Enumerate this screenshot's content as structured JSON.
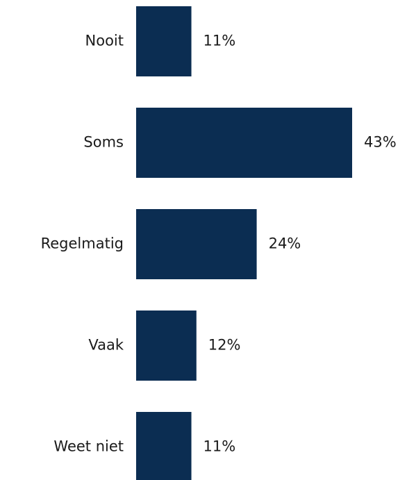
{
  "chart_data": {
    "type": "bar",
    "orientation": "horizontal",
    "color": "#0b2d52",
    "categories": [
      "Nooit",
      "Soms",
      "Regelmatig",
      "Vaak",
      "Weet niet"
    ],
    "values": [
      11,
      43,
      24,
      12,
      11
    ],
    "value_labels": [
      "11%",
      "43%",
      "24%",
      "12%",
      "11%"
    ]
  }
}
